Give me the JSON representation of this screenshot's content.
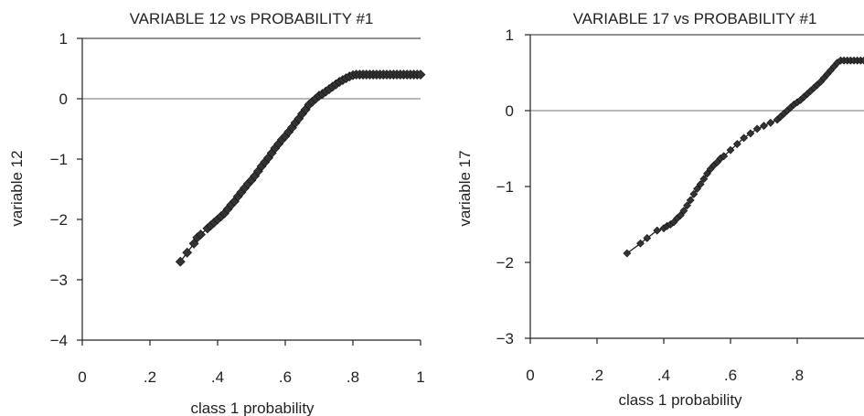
{
  "chart_data": [
    {
      "type": "line",
      "title": "VARIABLE 12 vs PROBABILITY #1",
      "xlabel": "class 1 probability",
      "ylabel": "variable 12",
      "xlim": [
        0,
        1
      ],
      "ylim": [
        -4,
        1
      ],
      "xticks": [
        "0",
        ".2",
        ".4",
        ".6",
        ".8",
        "1"
      ],
      "yticks": [
        "1",
        "0",
        "−1",
        "−2",
        "−3",
        "−4"
      ],
      "reference_line_y": 0,
      "grid": false,
      "marker": "diamond",
      "series": [
        {
          "x": [
            0.29,
            0.31,
            0.33,
            0.34,
            0.35,
            0.37,
            0.38,
            0.39,
            0.4,
            0.41,
            0.42,
            0.43,
            0.44,
            0.45,
            0.46,
            0.47,
            0.48,
            0.49,
            0.5,
            0.51,
            0.52,
            0.53,
            0.54,
            0.55,
            0.56,
            0.57,
            0.58,
            0.59,
            0.6,
            0.61,
            0.62,
            0.63,
            0.64,
            0.65,
            0.66,
            0.67,
            0.68,
            0.69,
            0.7,
            0.71,
            0.72,
            0.73,
            0.74,
            0.75,
            0.76,
            0.77,
            0.78,
            0.79,
            0.8,
            0.81,
            0.82,
            0.83,
            0.84,
            0.85,
            0.86,
            0.87,
            0.88,
            0.89,
            0.9,
            0.91,
            0.92,
            0.93,
            0.94,
            0.95,
            0.96,
            0.97,
            0.98,
            0.99,
            1.0
          ],
          "y": [
            -2.7,
            -2.55,
            -2.4,
            -2.3,
            -2.25,
            -2.15,
            -2.1,
            -2.05,
            -2.0,
            -1.95,
            -1.9,
            -1.83,
            -1.76,
            -1.7,
            -1.62,
            -1.55,
            -1.48,
            -1.41,
            -1.35,
            -1.28,
            -1.2,
            -1.12,
            -1.05,
            -0.98,
            -0.9,
            -0.82,
            -0.75,
            -0.68,
            -0.62,
            -0.55,
            -0.48,
            -0.4,
            -0.33,
            -0.25,
            -0.18,
            -0.1,
            -0.05,
            0.0,
            0.05,
            0.08,
            0.12,
            0.16,
            0.2,
            0.24,
            0.28,
            0.31,
            0.34,
            0.37,
            0.39,
            0.4,
            0.4,
            0.4,
            0.4,
            0.4,
            0.4,
            0.4,
            0.4,
            0.4,
            0.4,
            0.4,
            0.4,
            0.4,
            0.4,
            0.4,
            0.4,
            0.4,
            0.4,
            0.4,
            0.4
          ]
        }
      ]
    },
    {
      "type": "line",
      "title": "VARIABLE 17 vs PROBABILITY #1",
      "xlabel": "class 1 probability",
      "ylabel": "variable 17",
      "xlim": [
        0,
        1
      ],
      "ylim": [
        -3,
        1
      ],
      "xticks": [
        "0",
        ".2",
        ".4",
        ".6",
        ".8"
      ],
      "yticks": [
        "1",
        "0",
        "−1",
        "−2",
        "−3"
      ],
      "reference_line_y": 0,
      "grid": false,
      "marker": "diamond",
      "series": [
        {
          "x": [
            0.29,
            0.33,
            0.35,
            0.38,
            0.4,
            0.41,
            0.42,
            0.43,
            0.44,
            0.45,
            0.46,
            0.47,
            0.48,
            0.49,
            0.5,
            0.51,
            0.52,
            0.53,
            0.54,
            0.55,
            0.56,
            0.57,
            0.58,
            0.6,
            0.62,
            0.64,
            0.66,
            0.68,
            0.7,
            0.72,
            0.74,
            0.75,
            0.76,
            0.77,
            0.78,
            0.79,
            0.8,
            0.81,
            0.82,
            0.83,
            0.84,
            0.85,
            0.86,
            0.87,
            0.88,
            0.89,
            0.9,
            0.91,
            0.92,
            0.93,
            0.94,
            0.95,
            0.96,
            0.97,
            0.98,
            0.99,
            1.0
          ],
          "y": [
            -1.88,
            -1.75,
            -1.68,
            -1.58,
            -1.55,
            -1.52,
            -1.5,
            -1.47,
            -1.42,
            -1.38,
            -1.32,
            -1.25,
            -1.18,
            -1.1,
            -1.03,
            -0.97,
            -0.9,
            -0.83,
            -0.77,
            -0.72,
            -0.68,
            -0.63,
            -0.6,
            -0.52,
            -0.44,
            -0.36,
            -0.3,
            -0.24,
            -0.2,
            -0.16,
            -0.12,
            -0.08,
            -0.04,
            0.0,
            0.04,
            0.08,
            0.11,
            0.14,
            0.18,
            0.22,
            0.26,
            0.3,
            0.34,
            0.38,
            0.43,
            0.48,
            0.53,
            0.58,
            0.63,
            0.66,
            0.66,
            0.66,
            0.66,
            0.66,
            0.66,
            0.66,
            0.66
          ]
        }
      ]
    }
  ]
}
